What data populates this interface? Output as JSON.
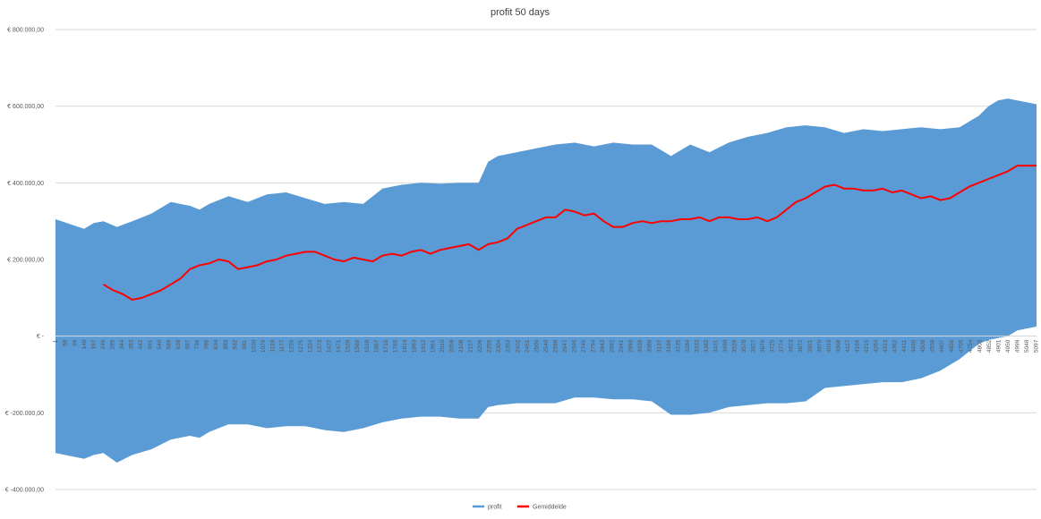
{
  "chart_data": {
    "type": "area",
    "title": "profit  50 days",
    "xlabel": "",
    "ylabel": "",
    "ylim": [
      -400000,
      800000
    ],
    "grid": true,
    "legend_position": "bottom",
    "y_ticks": [
      "€ -400.000,00",
      "€ -200.000,00",
      "€ -",
      "€ 200.000,00",
      "€ 400.000,00",
      "€ 600.000,00",
      "€ 800.000,00"
    ],
    "y_tick_values": [
      -400000,
      -200000,
      0,
      200000,
      400000,
      600000,
      800000
    ],
    "x_range": [
      1,
      5100
    ],
    "x_tick_labels": [
      "1",
      "50",
      "99",
      "148",
      "197",
      "246",
      "295",
      "344",
      "393",
      "442",
      "491",
      "540",
      "589",
      "638",
      "687",
      "736",
      "785",
      "834",
      "883",
      "932",
      "981",
      "1030",
      "1079",
      "1128",
      "1177",
      "1226",
      "1275",
      "1324",
      "1373",
      "1422",
      "1471",
      "1520",
      "1569",
      "1618",
      "1667",
      "1716",
      "1765",
      "1814",
      "1863",
      "1912",
      "1961",
      "2010",
      "2059",
      "2108",
      "2157",
      "2206",
      "2255",
      "2304",
      "2353",
      "2402",
      "2451",
      "2500",
      "2549",
      "2598",
      "2647",
      "2696",
      "2745",
      "2794",
      "2843",
      "2892",
      "2941",
      "2990",
      "3039",
      "3088",
      "3137",
      "3186",
      "3235",
      "3284",
      "3333",
      "3382",
      "3431",
      "3480",
      "3529",
      "3578",
      "3627",
      "3676",
      "3725",
      "3774",
      "3823",
      "3872",
      "3921",
      "3970",
      "4019",
      "4068",
      "4117",
      "4166",
      "4215",
      "4264",
      "4313",
      "4362",
      "4411",
      "4460",
      "4509",
      "4558",
      "4607",
      "4656",
      "4705",
      "4754",
      "4803",
      "4852",
      "4901",
      "4950",
      "4999",
      "5048",
      "5097"
    ],
    "series": [
      {
        "name": "profit",
        "color": "#5b9bd5",
        "x": [
          1,
          150,
          200,
          250,
          320,
          400,
          500,
          600,
          700,
          750,
          800,
          900,
          1000,
          1100,
          1200,
          1300,
          1400,
          1500,
          1600,
          1700,
          1800,
          1900,
          2000,
          2100,
          2200,
          2250,
          2300,
          2400,
          2500,
          2600,
          2700,
          2800,
          2900,
          3000,
          3100,
          3200,
          3300,
          3400,
          3500,
          3600,
          3700,
          3800,
          3900,
          4000,
          4100,
          4200,
          4300,
          4400,
          4500,
          4600,
          4700,
          4800,
          4850,
          4900,
          4950,
          5000,
          5050,
          5100
        ],
        "upper": [
          305000,
          280000,
          295000,
          300000,
          285000,
          300000,
          320000,
          350000,
          340000,
          330000,
          345000,
          365000,
          350000,
          370000,
          375000,
          360000,
          345000,
          350000,
          345000,
          385000,
          395000,
          400000,
          398000,
          400000,
          400000,
          455000,
          470000,
          480000,
          490000,
          500000,
          505000,
          495000,
          505000,
          500000,
          500000,
          470000,
          500000,
          480000,
          505000,
          520000,
          530000,
          545000,
          550000,
          545000,
          530000,
          540000,
          535000,
          540000,
          545000,
          540000,
          545000,
          575000,
          600000,
          615000,
          620000,
          615000,
          610000,
          605000
        ],
        "lower": [
          -305000,
          -320000,
          -310000,
          -305000,
          -330000,
          -310000,
          -295000,
          -270000,
          -260000,
          -265000,
          -250000,
          -230000,
          -230000,
          -240000,
          -235000,
          -235000,
          -245000,
          -250000,
          -240000,
          -225000,
          -215000,
          -210000,
          -210000,
          -215000,
          -215000,
          -185000,
          -180000,
          -175000,
          -175000,
          -175000,
          -160000,
          -160000,
          -165000,
          -165000,
          -170000,
          -205000,
          -205000,
          -200000,
          -185000,
          -180000,
          -175000,
          -175000,
          -170000,
          -135000,
          -130000,
          -125000,
          -120000,
          -120000,
          -110000,
          -90000,
          -60000,
          -20000,
          -10000,
          -5000,
          0,
          15000,
          20000,
          25000
        ]
      },
      {
        "name": "Gemiddelde",
        "color": "#ff0000",
        "x": [
          250,
          300,
          350,
          400,
          450,
          500,
          550,
          600,
          650,
          700,
          750,
          800,
          850,
          900,
          950,
          1000,
          1050,
          1100,
          1150,
          1200,
          1250,
          1300,
          1350,
          1400,
          1450,
          1500,
          1550,
          1600,
          1650,
          1700,
          1750,
          1800,
          1850,
          1900,
          1950,
          2000,
          2050,
          2100,
          2150,
          2200,
          2250,
          2300,
          2350,
          2400,
          2450,
          2500,
          2550,
          2600,
          2650,
          2700,
          2750,
          2800,
          2850,
          2900,
          2950,
          3000,
          3050,
          3100,
          3150,
          3200,
          3250,
          3300,
          3350,
          3400,
          3450,
          3500,
          3550,
          3600,
          3650,
          3700,
          3750,
          3800,
          3850,
          3900,
          3950,
          4000,
          4050,
          4100,
          4150,
          4200,
          4250,
          4300,
          4350,
          4400,
          4450,
          4500,
          4550,
          4600,
          4650,
          4700,
          4750,
          4800,
          4850,
          4900,
          4950,
          5000,
          5050,
          5100
        ],
        "values": [
          135000,
          120000,
          110000,
          95000,
          100000,
          110000,
          120000,
          135000,
          150000,
          175000,
          185000,
          190000,
          200000,
          195000,
          175000,
          180000,
          185000,
          195000,
          200000,
          210000,
          215000,
          220000,
          220000,
          210000,
          200000,
          195000,
          205000,
          200000,
          195000,
          210000,
          215000,
          210000,
          220000,
          225000,
          215000,
          225000,
          230000,
          235000,
          240000,
          225000,
          240000,
          245000,
          255000,
          280000,
          290000,
          300000,
          310000,
          310000,
          330000,
          325000,
          315000,
          320000,
          300000,
          285000,
          285000,
          295000,
          300000,
          295000,
          300000,
          300000,
          305000,
          305000,
          310000,
          300000,
          310000,
          310000,
          305000,
          305000,
          310000,
          300000,
          310000,
          330000,
          350000,
          360000,
          375000,
          390000,
          395000,
          385000,
          385000,
          380000,
          380000,
          385000,
          375000,
          380000,
          370000,
          360000,
          365000,
          355000,
          360000,
          375000,
          390000,
          400000,
          410000,
          420000,
          430000,
          445000,
          445000,
          445000
        ]
      }
    ]
  }
}
